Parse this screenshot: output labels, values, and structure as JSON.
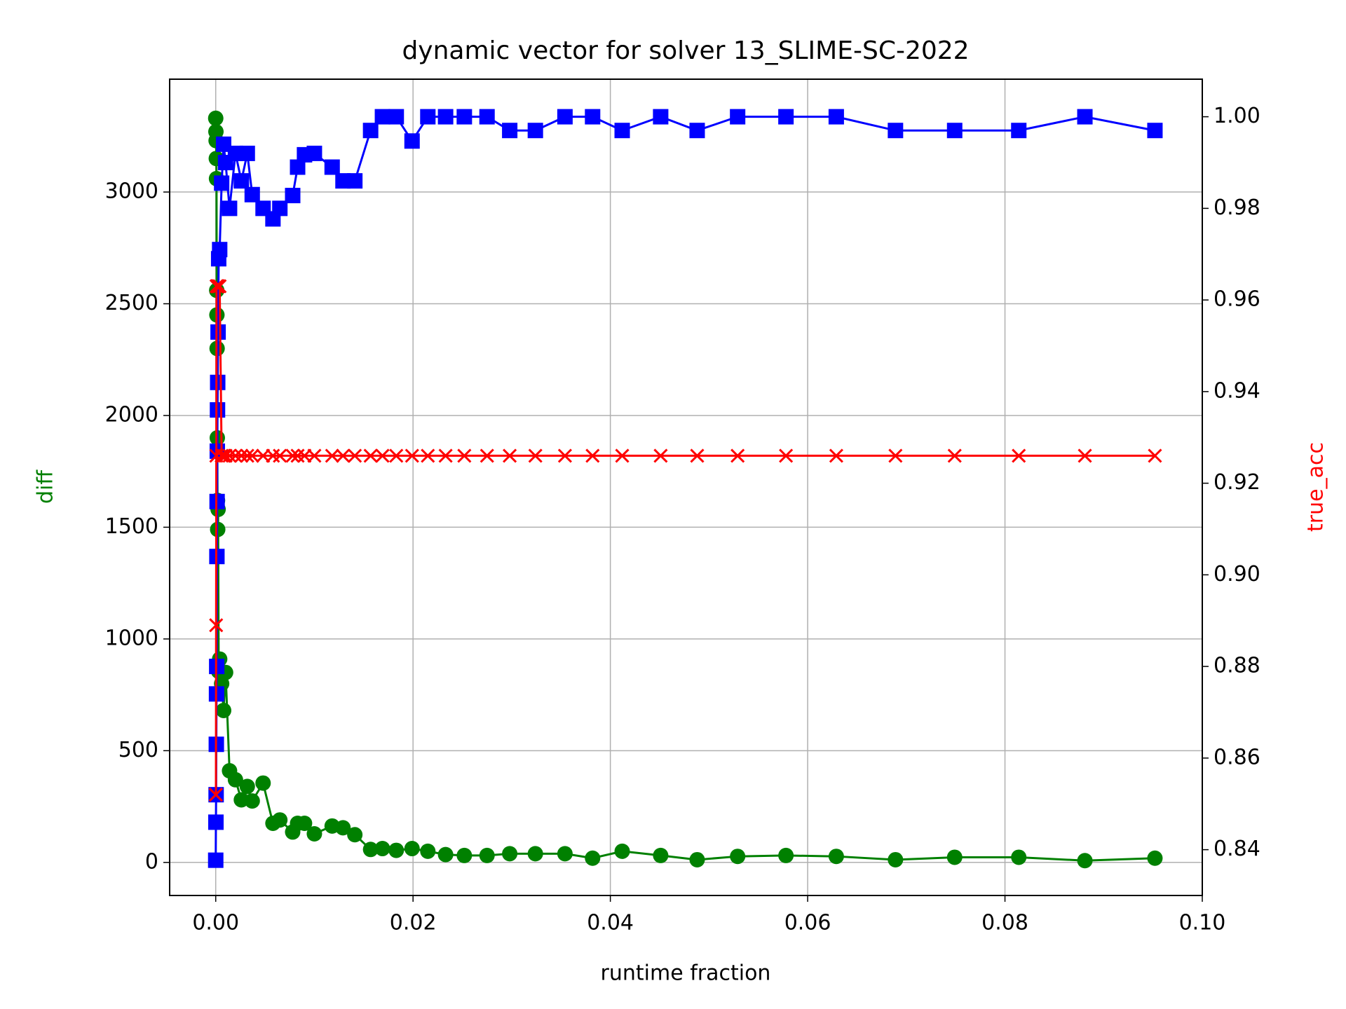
{
  "chart_data": {
    "type": "line",
    "title": "dynamic vector for solver 13_SLIME-SC-2022",
    "xlabel": "runtime fraction",
    "ylabel": "diff",
    "y2label": "true_acc",
    "ylabel_color": "green",
    "y2label_color": "red",
    "x": [
      0,
      2e-05,
      4e-05,
      6e-05,
      8e-05,
      0.0001,
      0.00012,
      0.00014,
      0.00016,
      0.00018,
      0.0002,
      0.00024,
      0.0003,
      0.0004,
      0.0006,
      0.0008,
      0.001,
      0.0014,
      0.002,
      0.0026,
      0.0032,
      0.0037,
      0.0048,
      0.0058,
      0.0065,
      0.0078,
      0.0083,
      0.009,
      0.01,
      0.0118,
      0.0129,
      0.0141,
      0.0157,
      0.0169,
      0.0183,
      0.0199,
      0.0215,
      0.0233,
      0.0252,
      0.0275,
      0.0298,
      0.0324,
      0.0354,
      0.0382,
      0.0412,
      0.0451,
      0.0488,
      0.0529,
      0.0578,
      0.0629,
      0.0689,
      0.0749,
      0.0814,
      0.0881,
      0.0952
    ],
    "series": [
      {
        "color": "green",
        "marker": "o",
        "axis": "y",
        "values": [
          3330,
          3270,
          3230,
          3150,
          3060,
          2560,
          2450,
          2300,
          1900,
          1620,
          1490,
          1580,
          855,
          910,
          800,
          680,
          850,
          410,
          370,
          280,
          340,
          275,
          355,
          175,
          190,
          136,
          175,
          175,
          128,
          163,
          155,
          124,
          58,
          62,
          54,
          62,
          50,
          35,
          31,
          31,
          39,
          39,
          39,
          19,
          50,
          31,
          12,
          27,
          31,
          27,
          12,
          23,
          23,
          8,
          19
        ]
      },
      {
        "color": "blue",
        "marker": "s",
        "axis": "y2",
        "values": [
          0.8377,
          0.846,
          0.852,
          0.863,
          0.874,
          0.88,
          0.904,
          0.916,
          0.927,
          0.936,
          0.942,
          0.953,
          0.969,
          0.971,
          0.9855,
          0.994,
          0.99,
          0.98,
          0.992,
          0.986,
          0.992,
          0.983,
          0.98,
          0.9777,
          0.98,
          0.9828,
          0.989,
          0.9917,
          0.992,
          0.989,
          0.986,
          0.986,
          0.997,
          1.0,
          1.0,
          0.9947,
          1.0,
          1.0,
          1.0,
          1.0,
          0.997,
          0.997,
          1.0,
          1.0,
          0.997,
          1.0,
          0.997,
          1.0,
          1.0,
          1.0,
          0.997,
          0.997,
          0.997,
          1.0,
          0.997
        ]
      },
      {
        "color": "red",
        "marker": "x",
        "axis": "y2",
        "values": [
          0.852,
          0.852,
          0.889,
          0.926,
          0.963,
          0.963,
          0.963,
          0.963,
          0.963,
          0.963,
          0.963,
          0.963,
          0.963,
          0.963,
          0.926,
          0.926,
          0.926,
          0.926,
          0.926,
          0.926,
          0.926,
          0.926,
          0.926,
          0.926,
          0.926,
          0.926,
          0.926,
          0.926,
          0.926,
          0.926,
          0.926,
          0.926,
          0.926,
          0.926,
          0.926,
          0.926,
          0.926,
          0.926,
          0.926,
          0.926,
          0.926,
          0.926,
          0.926,
          0.926,
          0.926,
          0.926,
          0.926,
          0.926,
          0.926,
          0.926,
          0.926,
          0.926,
          0.926,
          0.926,
          0.926
        ]
      }
    ],
    "xlim": [
      -0.00467,
      0.1
    ],
    "xticks": [
      {
        "value": 0,
        "label": "0.00"
      },
      {
        "value": 0.02,
        "label": "0.02"
      },
      {
        "value": 0.04,
        "label": "0.04"
      },
      {
        "value": 0.06,
        "label": "0.06"
      },
      {
        "value": 0.08,
        "label": "0.08"
      },
      {
        "value": 0.1,
        "label": "0.10"
      }
    ],
    "ylim": [
      -148,
      3505
    ],
    "yticks": [
      0,
      500,
      1000,
      1500,
      2000,
      2500,
      3000
    ],
    "y2lim": [
      0.83,
      1.0082
    ],
    "y2ticks": [
      0.84,
      0.86,
      0.88,
      {
        "value": 0.9,
        "label": "0.90"
      },
      0.92,
      0.94,
      0.96,
      0.98,
      {
        "value": 1.0,
        "label": "1.00"
      }
    ],
    "grid": true
  }
}
